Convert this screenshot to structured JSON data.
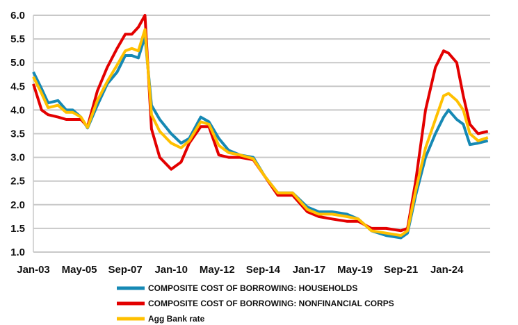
{
  "chart_data": {
    "type": "line",
    "title": "",
    "xlabel": "",
    "ylabel": "",
    "ylim": [
      1.0,
      6.0
    ],
    "yticks": [
      "1.0",
      "1.5",
      "2.0",
      "2.5",
      "3.0",
      "3.5",
      "4.0",
      "4.5",
      "5.0",
      "5.5",
      "6.0"
    ],
    "xticks": [
      "Jan-03",
      "May-05",
      "Sep-07",
      "Jan-10",
      "May-12",
      "Sep-14",
      "Jan-17",
      "May-19",
      "Sep-21",
      "Jan-24"
    ],
    "grid": true,
    "legend_position": "bottom",
    "series": [
      {
        "name": "COMPOSITE COST OF BORROWING: HOUSEHOLDS",
        "color": "#1689B4",
        "x": [
          "2003-01",
          "2003-06",
          "2003-10",
          "2004-04",
          "2004-09",
          "2005-01",
          "2005-06",
          "2005-10",
          "2006-04",
          "2006-10",
          "2007-04",
          "2007-09",
          "2008-01",
          "2008-05",
          "2008-09",
          "2009-01",
          "2009-06",
          "2010-01",
          "2010-07",
          "2010-12",
          "2011-07",
          "2011-12",
          "2012-06",
          "2012-12",
          "2013-07",
          "2014-03",
          "2014-10",
          "2015-06",
          "2016-03",
          "2016-12",
          "2017-07",
          "2018-03",
          "2018-12",
          "2019-07",
          "2020-03",
          "2020-12",
          "2021-09",
          "2022-01",
          "2022-06",
          "2022-12",
          "2023-06",
          "2023-11",
          "2024-02",
          "2024-07",
          "2024-11",
          "2025-03",
          "2025-08",
          "2026-02"
        ],
        "y": [
          4.8,
          4.45,
          4.15,
          4.2,
          4.0,
          4.0,
          3.85,
          3.62,
          4.1,
          4.55,
          4.8,
          5.15,
          5.15,
          5.1,
          5.55,
          4.1,
          3.8,
          3.5,
          3.3,
          3.4,
          3.85,
          3.75,
          3.4,
          3.15,
          3.05,
          3.0,
          2.6,
          2.25,
          2.25,
          1.95,
          1.85,
          1.85,
          1.8,
          1.7,
          1.45,
          1.35,
          1.3,
          1.4,
          2.2,
          3.0,
          3.5,
          3.85,
          4.0,
          3.8,
          3.7,
          3.27,
          3.3,
          3.35
        ]
      },
      {
        "name": "COMPOSITE COST OF BORROWING: NONFINANCIAL CORPS",
        "color": "#E30000",
        "x": [
          "2003-01",
          "2003-06",
          "2003-10",
          "2004-04",
          "2004-09",
          "2005-01",
          "2005-06",
          "2005-10",
          "2006-04",
          "2006-10",
          "2007-04",
          "2007-09",
          "2008-01",
          "2008-05",
          "2008-09",
          "2009-01",
          "2009-06",
          "2010-01",
          "2010-07",
          "2010-12",
          "2011-07",
          "2011-12",
          "2012-06",
          "2012-12",
          "2013-07",
          "2014-03",
          "2014-10",
          "2015-06",
          "2016-03",
          "2016-12",
          "2017-07",
          "2018-03",
          "2018-12",
          "2019-07",
          "2020-03",
          "2020-12",
          "2021-09",
          "2022-01",
          "2022-06",
          "2022-12",
          "2023-06",
          "2023-11",
          "2024-02",
          "2024-07",
          "2024-11",
          "2025-03",
          "2025-08",
          "2026-02"
        ],
        "y": [
          4.55,
          4.0,
          3.9,
          3.85,
          3.8,
          3.8,
          3.8,
          3.65,
          4.4,
          4.9,
          5.3,
          5.6,
          5.6,
          5.75,
          6.0,
          3.6,
          3.0,
          2.75,
          2.9,
          3.3,
          3.65,
          3.65,
          3.05,
          3.0,
          3.0,
          2.95,
          2.6,
          2.2,
          2.2,
          1.85,
          1.75,
          1.7,
          1.65,
          1.65,
          1.5,
          1.5,
          1.45,
          1.5,
          2.5,
          4.0,
          4.9,
          5.25,
          5.2,
          5.0,
          4.3,
          3.7,
          3.5,
          3.55
        ]
      },
      {
        "name": "Agg Bank rate",
        "color": "#FFC000",
        "x": [
          "2003-01",
          "2003-06",
          "2003-10",
          "2004-04",
          "2004-09",
          "2005-01",
          "2005-06",
          "2005-10",
          "2006-04",
          "2006-10",
          "2007-04",
          "2007-09",
          "2008-01",
          "2008-05",
          "2008-09",
          "2009-01",
          "2009-06",
          "2010-01",
          "2010-07",
          "2010-12",
          "2011-07",
          "2011-12",
          "2012-06",
          "2012-12",
          "2013-07",
          "2014-03",
          "2014-10",
          "2015-06",
          "2016-03",
          "2016-12",
          "2017-07",
          "2018-03",
          "2018-12",
          "2019-07",
          "2020-03",
          "2020-12",
          "2021-09",
          "2022-01",
          "2022-06",
          "2022-12",
          "2023-06",
          "2023-11",
          "2024-02",
          "2024-07",
          "2024-11",
          "2025-03",
          "2025-08",
          "2026-02"
        ],
        "y": [
          4.7,
          4.35,
          4.05,
          4.1,
          3.95,
          3.95,
          3.85,
          3.63,
          4.2,
          4.6,
          4.95,
          5.25,
          5.3,
          5.25,
          5.7,
          3.9,
          3.55,
          3.3,
          3.2,
          3.35,
          3.75,
          3.7,
          3.25,
          3.1,
          3.05,
          2.97,
          2.6,
          2.25,
          2.25,
          1.9,
          1.8,
          1.8,
          1.75,
          1.7,
          1.45,
          1.4,
          1.35,
          1.45,
          2.3,
          3.2,
          3.8,
          4.3,
          4.35,
          4.2,
          4.0,
          3.5,
          3.35,
          3.42
        ]
      }
    ]
  }
}
